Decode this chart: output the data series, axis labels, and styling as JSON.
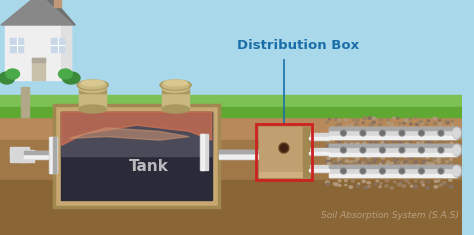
{
  "bg_sky_color": "#A8D8EA",
  "grass_top_color": "#7DC155",
  "grass_mid_color": "#5FA832",
  "soil_top_color": "#B8895A",
  "soil_mid_color": "#A07848",
  "soil_dark_color": "#8A6535",
  "title_text": "Distribution Box",
  "title_color": "#1B6FA8",
  "tank_label": "Tank",
  "tank_label_color": "#CCCCCC",
  "sas_label": "Soil Absorption System (S.A.S)",
  "sas_label_color": "#B8A080",
  "tank_outer_color": "#C8A870",
  "tank_outer_edge": "#A08850",
  "tank_inner_dark": "#2A2A38",
  "tank_inner_mid": "#383845",
  "tank_scum_color": "#D07050",
  "tank_scum_color2": "#C89070",
  "dbox_color": "#C0A070",
  "dbox_border_color": "#CC2222",
  "pipe_color": "#D8D8D8",
  "pipe_shade": "#A8A8A8",
  "pipe_light": "#F0F0F0",
  "gravel_color": "#B09878",
  "house_wall": "#EFEFEF",
  "house_wall2": "#E0E0E0",
  "house_roof": "#888888",
  "house_trim": "#CCCCCC",
  "window_color": "#C8D8E8",
  "door_color": "#C8C0A8",
  "chimney_color": "#C09878",
  "bush_color": "#3A8A3A",
  "bush_color2": "#4AAA4A",
  "cap_color": "#C8B880",
  "cap_shade": "#A89860"
}
